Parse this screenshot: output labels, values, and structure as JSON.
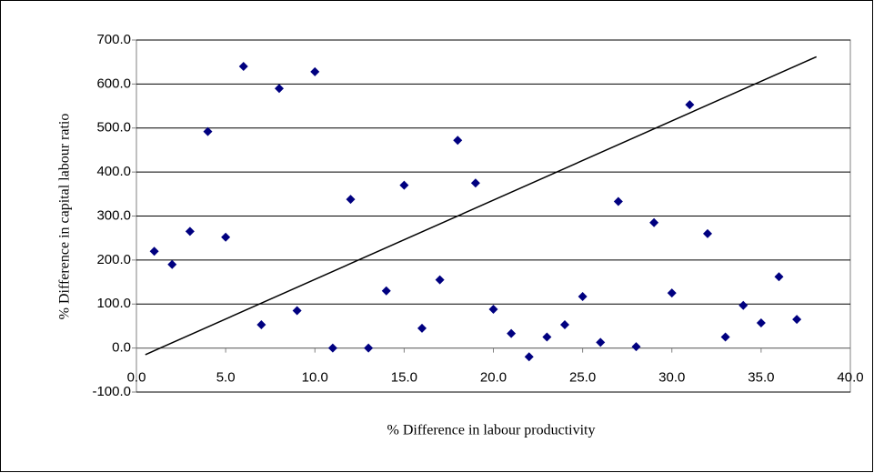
{
  "chart_data": {
    "type": "scatter",
    "x_label": "% Difference in labour productivity",
    "y_label": "% Difference in capital labour ratio",
    "xlim": [
      0,
      40
    ],
    "ylim": [
      -100,
      700
    ],
    "xticks": [
      {
        "value": 0,
        "label": "0.0"
      },
      {
        "value": 5,
        "label": "5.0"
      },
      {
        "value": 10,
        "label": "10.0"
      },
      {
        "value": 15,
        "label": "15.0"
      },
      {
        "value": 20,
        "label": "20.0"
      },
      {
        "value": 25,
        "label": "25.0"
      },
      {
        "value": 30,
        "label": "30.0"
      },
      {
        "value": 35,
        "label": "35.0"
      },
      {
        "value": 40,
        "label": "40.0"
      }
    ],
    "yticks": [
      {
        "value": -100,
        "label": "-100.0"
      },
      {
        "value": 0,
        "label": "0.0"
      },
      {
        "value": 100,
        "label": "100.0"
      },
      {
        "value": 200,
        "label": "200.0"
      },
      {
        "value": 300,
        "label": "300.0"
      },
      {
        "value": 400,
        "label": "400.0"
      },
      {
        "value": 500,
        "label": "500.0"
      },
      {
        "value": 600,
        "label": "600.0"
      },
      {
        "value": 700,
        "label": "700.0"
      }
    ],
    "grid": true,
    "series": [
      {
        "color": "#000080",
        "marker": "diamond",
        "x": [
          1,
          2,
          3,
          4,
          5,
          6,
          7,
          8,
          9,
          10,
          11,
          12,
          13,
          14,
          15,
          16,
          17,
          18,
          19,
          20,
          21,
          22,
          23,
          24,
          25,
          26,
          27,
          28,
          29,
          30,
          31,
          32,
          33,
          34,
          35,
          36,
          37
        ],
        "values": [
          220,
          190,
          265,
          492,
          252,
          640,
          53,
          590,
          85,
          628,
          0,
          338,
          0,
          130,
          370,
          45,
          155,
          472,
          375,
          88,
          33,
          -20,
          25,
          53,
          117,
          13,
          333,
          3,
          285,
          125,
          553,
          260,
          25,
          97,
          57,
          162,
          65
        ]
      },
      {
        "color": "#000000",
        "marker": "line",
        "x": [
          0.5,
          38.1
        ],
        "values": [
          -15,
          662
        ]
      }
    ]
  }
}
